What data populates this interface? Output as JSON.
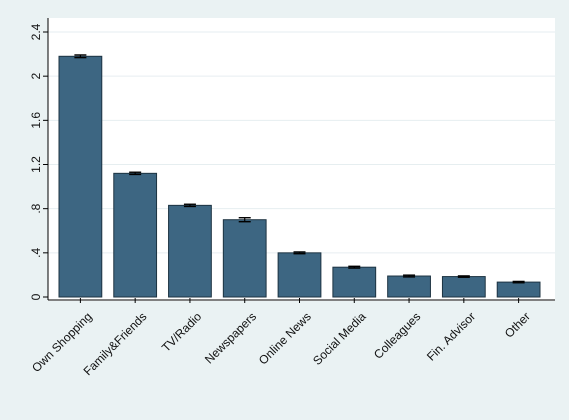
{
  "colors": {
    "background": "#eaf2f3",
    "plot_background": "#ffffff",
    "bar_fill": "#3d6682",
    "bar_stroke": "#1d3342",
    "grid": "#e6eef0",
    "axis": "#000000",
    "error_bar": "#000000"
  },
  "chart_data": {
    "type": "bar",
    "title": "",
    "xlabel": "",
    "ylabel": "",
    "categories": [
      "Own Shopping",
      "Family&Friends",
      "TV/Radio",
      "Newspapers",
      "Online News",
      "Social Media",
      "Colleagues",
      "Fin. Advisor",
      "Other"
    ],
    "values": [
      2.18,
      1.12,
      0.83,
      0.7,
      0.4,
      0.27,
      0.19,
      0.185,
      0.135
    ],
    "errors": [
      0.012,
      0.01,
      0.01,
      0.018,
      0.008,
      0.008,
      0.008,
      0.006,
      0.006
    ],
    "ylim": [
      0,
      2.4
    ],
    "yticks": [
      0,
      0.4,
      0.8,
      1.2,
      1.6,
      2,
      2.4
    ],
    "ytick_labels": [
      "0",
      ".4",
      ".8",
      "1.2",
      "1.6",
      "2",
      "2.4"
    ],
    "grid": true,
    "error_bars": true,
    "x_label_rotation": -45
  }
}
